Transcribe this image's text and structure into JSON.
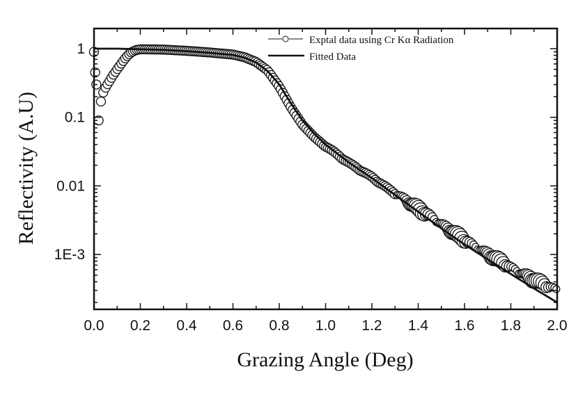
{
  "chart_data": {
    "type": "line",
    "title": "",
    "xlabel": "Grazing Angle (Deg)",
    "ylabel": "Reflectivity (A.U)",
    "xlim": [
      0.0,
      2.0
    ],
    "ylim": [
      0.00014,
      1.9
    ],
    "yscale": "log",
    "grid": false,
    "legend_position": "upper right",
    "x_ticks": [
      "0.0",
      "0.2",
      "0.4",
      "0.6",
      "0.8",
      "1.0",
      "1.2",
      "1.4",
      "1.6",
      "1.8",
      "2.0"
    ],
    "y_ticks": [
      "1",
      "0.1",
      "0.01",
      "1E-3"
    ],
    "legend": [
      "Exptal data using Cr Kα Radiation",
      "Fitted Data"
    ],
    "series": [
      {
        "name": "Exptal data using Cr Kα Radiation",
        "marker": "open-circle",
        "x": [
          0.0,
          0.01,
          0.02,
          0.03,
          0.04,
          0.05,
          0.06,
          0.07,
          0.08,
          0.1,
          0.12,
          0.14,
          0.16,
          0.18,
          0.2,
          0.3,
          0.4,
          0.5,
          0.6,
          0.65,
          0.7,
          0.75,
          0.8,
          0.85,
          0.9,
          0.95,
          1.0,
          1.1,
          1.2,
          1.3,
          1.4,
          1.5,
          1.6,
          1.7,
          1.8,
          1.9,
          2.0
        ],
        "y": [
          0.9,
          0.3,
          0.09,
          0.17,
          0.23,
          0.27,
          0.31,
          0.35,
          0.4,
          0.5,
          0.62,
          0.76,
          0.88,
          0.95,
          0.98,
          0.97,
          0.93,
          0.88,
          0.82,
          0.75,
          0.64,
          0.48,
          0.28,
          0.14,
          0.078,
          0.052,
          0.037,
          0.021,
          0.013,
          0.0075,
          0.0043,
          0.0026,
          0.0015,
          0.00095,
          0.0006,
          0.0004,
          0.00028
        ]
      },
      {
        "name": "Fitted Data",
        "marker": "none",
        "x": [
          0.0,
          0.1,
          0.15,
          0.2,
          0.3,
          0.4,
          0.5,
          0.6,
          0.65,
          0.7,
          0.75,
          0.8,
          0.85,
          0.9,
          0.95,
          1.0,
          1.1,
          1.2,
          1.3,
          1.4,
          1.5,
          1.6,
          1.7,
          1.8,
          1.9,
          2.0
        ],
        "y": [
          1.0,
          1.0,
          0.99,
          0.98,
          0.96,
          0.92,
          0.87,
          0.81,
          0.74,
          0.63,
          0.47,
          0.3,
          0.16,
          0.09,
          0.058,
          0.04,
          0.022,
          0.013,
          0.0074,
          0.0042,
          0.0024,
          0.0014,
          0.00085,
          0.00052,
          0.00032,
          0.0002
        ]
      }
    ]
  },
  "axes": {
    "x_label": "Grazing Angle (Deg)",
    "y_label": "Reflectivity (A.U)",
    "x_ticks": [
      "0.0",
      "0.2",
      "0.4",
      "0.6",
      "0.8",
      "1.0",
      "1.2",
      "1.4",
      "1.6",
      "1.8",
      "2.0"
    ],
    "y_ticks": [
      "1",
      "0.1",
      "0.01",
      "1E-3"
    ]
  },
  "legend": {
    "items": [
      {
        "label": "Exptal data using Cr Kα Radiation",
        "symbol": "line-circle"
      },
      {
        "label": "Fitted Data",
        "symbol": "line"
      }
    ]
  },
  "colors": {
    "ink": "#111111",
    "background": "#ffffff"
  }
}
